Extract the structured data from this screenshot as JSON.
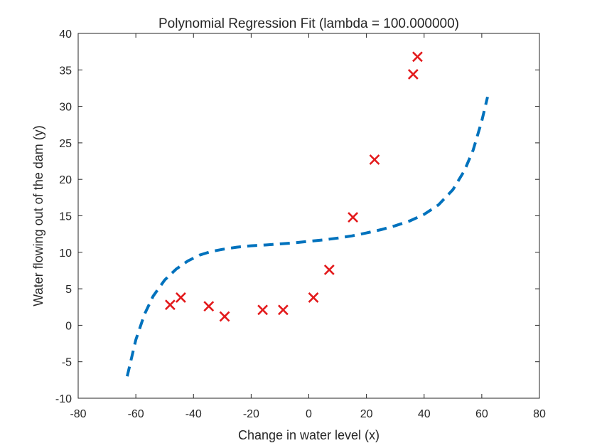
{
  "chart_data": {
    "type": "scatter",
    "title": "Polynomial Regression Fit (lambda = 100.000000)",
    "xlabel": "Change in water level (x)",
    "ylabel": "Water flowing out of the dam (y)",
    "xlim": [
      -80,
      80
    ],
    "ylim": [
      -10,
      40
    ],
    "xticks": [
      -80,
      -60,
      -40,
      -20,
      0,
      20,
      40,
      60,
      80
    ],
    "yticks": [
      -10,
      -5,
      0,
      5,
      10,
      15,
      20,
      25,
      30,
      35,
      40
    ],
    "grid": false,
    "series": [
      {
        "marker": "x",
        "color": "#e31a1c",
        "points": [
          [
            -48.1,
            2.8
          ],
          [
            -44.4,
            3.8
          ],
          [
            -34.7,
            2.6
          ],
          [
            -29.2,
            1.2
          ],
          [
            -16.0,
            2.1
          ],
          [
            -8.9,
            2.1
          ],
          [
            1.6,
            3.8
          ],
          [
            7.1,
            7.6
          ],
          [
            15.3,
            14.8
          ],
          [
            22.8,
            22.7
          ],
          [
            36.2,
            34.4
          ],
          [
            37.7,
            36.8
          ]
        ]
      },
      {
        "line": "dashed",
        "color": "#0072bd",
        "points": [
          [
            -63,
            -7.0
          ],
          [
            -60,
            -2.0
          ],
          [
            -57,
            1.5
          ],
          [
            -54,
            4.0
          ],
          [
            -50,
            6.2
          ],
          [
            -46,
            7.7
          ],
          [
            -42,
            8.8
          ],
          [
            -38,
            9.6
          ],
          [
            -34,
            10.1
          ],
          [
            -30,
            10.4
          ],
          [
            -25,
            10.7
          ],
          [
            -20,
            10.9
          ],
          [
            -15,
            11.0
          ],
          [
            -10,
            11.15
          ],
          [
            -5,
            11.3
          ],
          [
            0,
            11.5
          ],
          [
            5,
            11.7
          ],
          [
            10,
            11.95
          ],
          [
            15,
            12.25
          ],
          [
            20,
            12.65
          ],
          [
            25,
            13.1
          ],
          [
            30,
            13.65
          ],
          [
            35,
            14.3
          ],
          [
            40,
            15.2
          ],
          [
            45,
            16.5
          ],
          [
            50,
            18.6
          ],
          [
            54,
            21.2
          ],
          [
            57,
            24.0
          ],
          [
            60,
            28.0
          ],
          [
            62,
            31.3
          ]
        ]
      }
    ]
  }
}
